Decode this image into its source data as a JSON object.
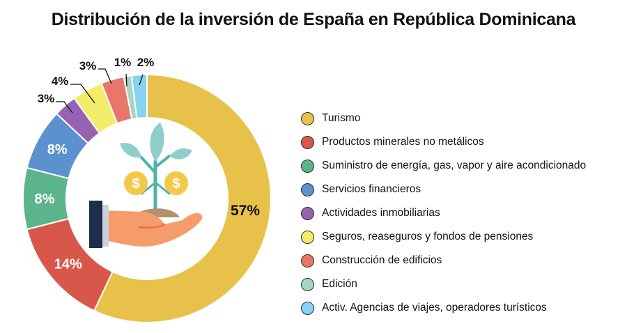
{
  "title": "Distribución de la inversión de España en República Dominicana",
  "chart_data": {
    "type": "pie",
    "variant": "donut",
    "title": "Distribución de la inversión de España en República Dominicana",
    "legend_position": "right",
    "center_icon": "plant-growing-coins-hand-icon",
    "series": [
      {
        "name": "Turismo",
        "value": 57,
        "label": "57%",
        "color": "#e8c14b"
      },
      {
        "name": "Productos minerales no metálicos",
        "value": 14,
        "label": "14%",
        "color": "#d9574a"
      },
      {
        "name": "Suministro de energía, gas, vapor y aire acondicionado",
        "value": 8,
        "label": "8%",
        "color": "#5bb48b"
      },
      {
        "name": "Servicios financieros",
        "value": 8,
        "label": "8%",
        "color": "#5b91cf"
      },
      {
        "name": "Actividades inmobiliarias",
        "value": 3,
        "label": "3%",
        "color": "#9662b2"
      },
      {
        "name": "Seguros, reaseguros y fondos de pensiones",
        "value": 4,
        "label": "4%",
        "color": "#f3ec69"
      },
      {
        "name": "Construcción de edificios",
        "value": 3,
        "label": "3%",
        "color": "#e8776a"
      },
      {
        "name": "Edición",
        "value": 1,
        "label": "1%",
        "color": "#a4d6c8"
      },
      {
        "name": "Activ. Agencias de viajes, operadores turísticos",
        "value": 2,
        "label": "2%",
        "color": "#86d4f1"
      }
    ]
  }
}
